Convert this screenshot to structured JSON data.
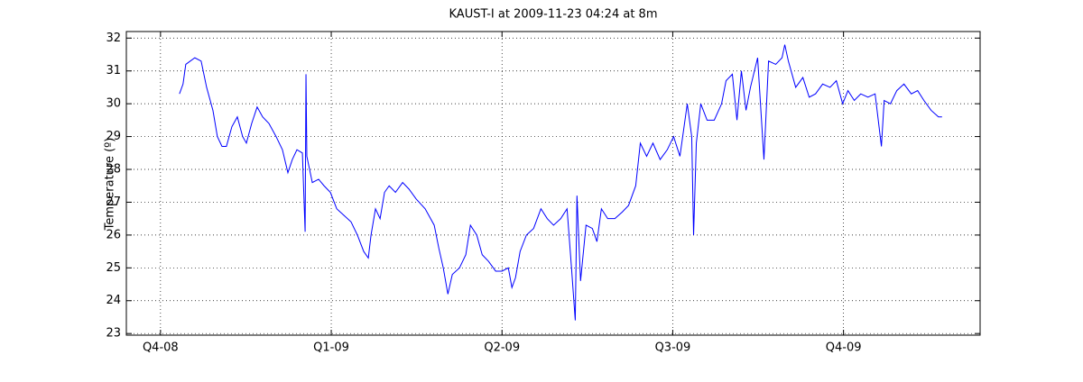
{
  "chart_data": {
    "type": "line",
    "title": "KAUST-I at 2009-11-23 04:24 at 8m",
    "ylabel": "Temperature (º)",
    "x": [
      0.111,
      0.132,
      0.148,
      0.201,
      0.238,
      0.27,
      0.307,
      0.333,
      0.36,
      0.386,
      0.418,
      0.45,
      0.481,
      0.503,
      0.534,
      0.566,
      0.598,
      0.635,
      0.677,
      0.714,
      0.746,
      0.772,
      0.799,
      0.831,
      0.847,
      0.852,
      0.857,
      0.889,
      0.926,
      0.958,
      0.995,
      1.032,
      1.074,
      1.116,
      1.153,
      1.19,
      1.217,
      1.233,
      1.259,
      1.286,
      1.312,
      1.339,
      1.376,
      1.418,
      1.455,
      1.497,
      1.55,
      1.603,
      1.63,
      1.656,
      1.683,
      1.709,
      1.751,
      1.788,
      1.815,
      1.852,
      1.884,
      1.921,
      1.963,
      2.0,
      2.037,
      2.058,
      2.079,
      2.106,
      2.143,
      2.185,
      2.228,
      2.265,
      2.302,
      2.344,
      2.381,
      2.407,
      2.429,
      2.439,
      2.46,
      2.492,
      2.529,
      2.556,
      2.582,
      2.619,
      2.661,
      2.704,
      2.741,
      2.783,
      2.81,
      2.847,
      2.884,
      2.926,
      2.968,
      3.005,
      3.042,
      3.085,
      3.111,
      3.122,
      3.138,
      3.164,
      3.201,
      3.243,
      3.286,
      3.312,
      3.349,
      3.376,
      3.402,
      3.429,
      3.455,
      3.497,
      3.534,
      3.561,
      3.603,
      3.64,
      3.656,
      3.677,
      3.72,
      3.762,
      3.799,
      3.836,
      3.878,
      3.921,
      3.958,
      3.995,
      4.026,
      4.063,
      4.101,
      4.143,
      4.185,
      4.222,
      4.238,
      4.275,
      4.312,
      4.354,
      4.397,
      4.434,
      4.471,
      4.513,
      4.556,
      4.577
    ],
    "series": [
      {
        "name": "Temperature",
        "color": "#0000ff",
        "values": [
          30.3,
          30.6,
          31.2,
          31.4,
          31.3,
          30.5,
          29.8,
          29.0,
          28.7,
          28.7,
          29.3,
          29.6,
          29.0,
          28.8,
          29.4,
          29.9,
          29.6,
          29.4,
          29.0,
          28.6,
          27.9,
          28.3,
          28.6,
          28.5,
          26.1,
          30.9,
          28.4,
          27.6,
          27.7,
          27.5,
          27.3,
          26.8,
          26.6,
          26.4,
          26.0,
          25.5,
          25.3,
          26.0,
          26.8,
          26.5,
          27.3,
          27.5,
          27.3,
          27.6,
          27.4,
          27.1,
          26.8,
          26.3,
          25.6,
          25.0,
          24.2,
          24.8,
          25.0,
          25.4,
          26.3,
          26.0,
          25.4,
          25.2,
          24.9,
          24.9,
          25.0,
          24.4,
          24.7,
          25.5,
          26.0,
          26.2,
          26.8,
          26.5,
          26.3,
          26.5,
          26.8,
          25.0,
          23.4,
          27.2,
          24.6,
          26.3,
          26.2,
          25.8,
          26.8,
          26.5,
          26.5,
          26.7,
          26.9,
          27.5,
          28.8,
          28.4,
          28.8,
          28.3,
          28.6,
          29.0,
          28.4,
          30.0,
          29.0,
          26.0,
          28.8,
          30.0,
          29.5,
          29.5,
          30.0,
          30.7,
          30.9,
          29.5,
          31.0,
          29.8,
          30.5,
          31.4,
          28.3,
          31.3,
          31.2,
          31.4,
          31.8,
          31.3,
          30.5,
          30.8,
          30.2,
          30.3,
          30.6,
          30.5,
          30.7,
          30.0,
          30.4,
          30.1,
          30.3,
          30.2,
          30.3,
          28.7,
          30.1,
          30.0,
          30.4,
          30.6,
          30.3,
          30.4,
          30.1,
          29.8,
          29.6,
          29.6
        ]
      }
    ],
    "xlim": [
      -0.2,
      4.8
    ],
    "xticks": [
      {
        "value": 0,
        "label": "Q4-08"
      },
      {
        "value": 1,
        "label": "Q1-09"
      },
      {
        "value": 2,
        "label": "Q2-09"
      },
      {
        "value": 3,
        "label": "Q3-09"
      },
      {
        "value": 4,
        "label": "Q4-09"
      }
    ],
    "ylim": [
      22.95,
      32.2
    ],
    "yticks": [
      23,
      24,
      25,
      26,
      27,
      28,
      29,
      30,
      31,
      32
    ],
    "grid": true
  }
}
